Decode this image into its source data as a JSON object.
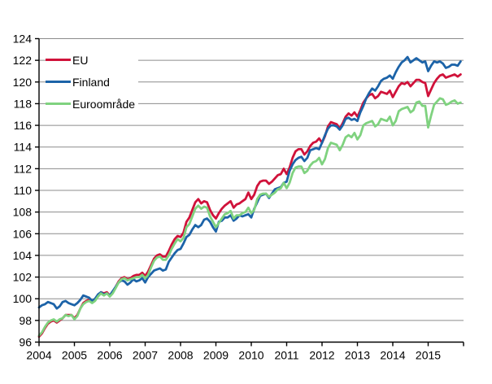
{
  "chart_data": {
    "type": "line",
    "title": "",
    "xlabel": "",
    "ylabel": "",
    "x_unit": "month",
    "x_start": "2004-01",
    "x_end": "2015-12",
    "ylim": [
      96,
      124
    ],
    "y_tick_step": 2,
    "y_tick_labels": [
      "96",
      "98",
      "100",
      "102",
      "104",
      "106",
      "108",
      "110",
      "112",
      "114",
      "116",
      "118",
      "120",
      "122",
      "124"
    ],
    "x_tick_labels": [
      "2004",
      "2005",
      "2006",
      "2007",
      "2008",
      "2009",
      "2010",
      "2011",
      "2012",
      "2013",
      "2014",
      "2015"
    ],
    "grid": "horizontal",
    "grid_color": "#8c8c8c",
    "axis_color": "#000000",
    "legend_position": "top-left",
    "series": [
      {
        "name": "EU",
        "color": "#d0123a",
        "values": [
          96.5,
          96.8,
          97.3,
          97.7,
          97.9,
          98.0,
          97.8,
          98.0,
          98.2,
          98.5,
          98.5,
          98.5,
          98.2,
          98.5,
          99.1,
          99.6,
          99.8,
          99.9,
          99.7,
          99.9,
          100.3,
          100.6,
          100.5,
          100.6,
          100.3,
          100.6,
          101.1,
          101.6,
          101.9,
          102.0,
          101.8,
          101.9,
          102.1,
          102.2,
          102.2,
          102.4,
          102.1,
          102.5,
          103.1,
          103.7,
          104.0,
          104.1,
          103.9,
          103.9,
          104.4,
          105.0,
          105.5,
          105.8,
          105.7,
          106.1,
          107.1,
          107.5,
          108.2,
          108.9,
          109.2,
          108.8,
          109.0,
          108.9,
          108.2,
          107.7,
          107.4,
          107.9,
          108.3,
          108.6,
          108.8,
          109.0,
          108.4,
          108.7,
          108.8,
          109.0,
          109.2,
          109.8,
          109.2,
          109.6,
          110.4,
          110.8,
          110.9,
          110.9,
          110.6,
          110.8,
          111.1,
          111.4,
          111.5,
          112.0,
          111.5,
          112.1,
          113.0,
          113.6,
          113.8,
          113.8,
          113.3,
          113.6,
          114.1,
          114.4,
          114.5,
          114.8,
          114.4,
          115.0,
          115.9,
          116.3,
          116.2,
          116.1,
          115.7,
          116.2,
          116.8,
          117.1,
          116.9,
          117.2,
          116.8,
          117.4,
          118.1,
          118.5,
          118.8,
          118.9,
          118.5,
          118.7,
          119.1,
          119.0,
          118.9,
          119.2,
          118.6,
          119.1,
          119.6,
          119.9,
          119.8,
          120.0,
          119.6,
          119.9,
          120.2,
          120.2,
          120.0,
          119.9,
          118.7,
          119.3,
          119.9,
          120.3,
          120.6,
          120.7,
          120.4,
          120.5,
          120.6,
          120.7,
          120.5,
          120.7
        ]
      },
      {
        "name": "Finland",
        "color": "#1c63a8",
        "values": [
          99.2,
          99.4,
          99.5,
          99.7,
          99.6,
          99.5,
          99.1,
          99.3,
          99.7,
          99.8,
          99.6,
          99.5,
          99.4,
          99.6,
          99.9,
          100.3,
          100.2,
          100.1,
          99.8,
          100.0,
          100.4,
          100.6,
          100.4,
          100.5,
          100.3,
          100.7,
          101.1,
          101.5,
          101.7,
          101.6,
          101.3,
          101.5,
          101.8,
          101.6,
          101.7,
          101.9,
          101.5,
          102.0,
          102.3,
          102.6,
          102.7,
          102.8,
          102.6,
          102.7,
          103.4,
          103.8,
          104.2,
          104.5,
          104.6,
          105.1,
          105.7,
          105.9,
          106.4,
          106.8,
          106.6,
          106.8,
          107.3,
          107.4,
          107.1,
          106.6,
          106.2,
          107.1,
          107.2,
          107.5,
          107.5,
          107.7,
          107.2,
          107.4,
          107.7,
          107.6,
          107.7,
          107.8,
          107.5,
          108.3,
          108.9,
          109.5,
          109.6,
          109.7,
          109.3,
          109.7,
          110.1,
          110.2,
          110.3,
          110.7,
          110.8,
          111.8,
          112.4,
          112.8,
          113.0,
          113.1,
          112.7,
          113.0,
          113.7,
          113.8,
          113.9,
          113.8,
          114.4,
          115.1,
          115.7,
          116.0,
          116.0,
          115.9,
          115.6,
          116.0,
          116.6,
          116.7,
          116.5,
          116.6,
          116.4,
          117.2,
          117.8,
          118.5,
          119.0,
          119.4,
          119.2,
          119.6,
          120.1,
          120.3,
          120.4,
          120.6,
          120.3,
          120.9,
          121.4,
          121.8,
          122.0,
          122.3,
          121.8,
          122.0,
          122.2,
          122.0,
          121.8,
          121.9,
          121.0,
          121.5,
          121.9,
          121.8,
          121.9,
          121.7,
          121.3,
          121.4,
          121.6,
          121.6,
          121.5,
          121.9
        ]
      },
      {
        "name": "Euroområde",
        "color": "#7fd27f",
        "values": [
          96.6,
          96.9,
          97.4,
          97.8,
          98.0,
          98.1,
          97.9,
          98.1,
          98.2,
          98.5,
          98.4,
          98.5,
          98.1,
          98.4,
          99.1,
          99.5,
          99.7,
          99.8,
          99.6,
          99.8,
          100.2,
          100.5,
          100.3,
          100.5,
          100.2,
          100.5,
          101.0,
          101.5,
          101.8,
          101.9,
          101.7,
          101.8,
          101.9,
          102.0,
          102.0,
          102.2,
          101.9,
          102.2,
          102.9,
          103.5,
          103.8,
          103.9,
          103.6,
          103.6,
          104.0,
          104.6,
          105.1,
          105.5,
          105.3,
          105.6,
          106.6,
          106.9,
          107.6,
          108.3,
          108.6,
          108.3,
          108.5,
          108.4,
          107.6,
          107.1,
          106.6,
          107.0,
          107.4,
          107.8,
          107.9,
          108.1,
          107.4,
          107.7,
          107.7,
          107.9,
          108.0,
          108.4,
          107.9,
          108.2,
          109.2,
          109.6,
          109.7,
          109.7,
          109.4,
          109.6,
          109.8,
          110.1,
          110.2,
          110.7,
          110.2,
          110.7,
          111.6,
          112.1,
          112.2,
          112.2,
          111.6,
          111.8,
          112.3,
          112.6,
          112.7,
          113.0,
          112.4,
          112.9,
          113.9,
          114.4,
          114.3,
          114.2,
          113.7,
          114.2,
          114.9,
          115.1,
          114.9,
          115.3,
          114.7,
          115.1,
          116.0,
          116.2,
          116.3,
          116.4,
          115.9,
          116.1,
          116.6,
          116.5,
          116.4,
          116.8,
          116.0,
          116.4,
          117.3,
          117.5,
          117.6,
          117.7,
          117.2,
          117.4,
          118.1,
          118.2,
          117.8,
          117.8,
          115.8,
          116.9,
          117.9,
          118.2,
          118.5,
          118.4,
          117.9,
          118.0,
          118.2,
          118.3,
          118.0,
          118.1
        ]
      }
    ]
  },
  "legend": {
    "items": [
      {
        "label": "EU",
        "color": "#d0123a"
      },
      {
        "label": "Finland",
        "color": "#1c63a8"
      },
      {
        "label": "Euroområde",
        "color": "#7fd27f"
      }
    ]
  }
}
